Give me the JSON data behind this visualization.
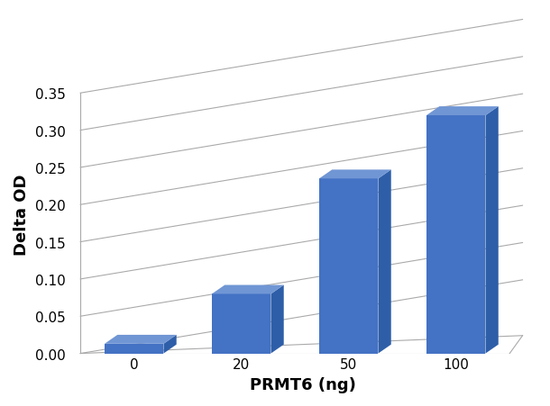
{
  "categories": [
    "0",
    "20",
    "50",
    "100"
  ],
  "x_values": [
    0,
    1,
    2,
    3
  ],
  "values": [
    0.013,
    0.08,
    0.235,
    0.32
  ],
  "bar_color": "#4472C4",
  "bar_top_color": "#7096D4",
  "bar_side_color": "#2E5EA8",
  "xlabel": "PRMT6 (ng)",
  "ylabel": "Delta OD",
  "ylim": [
    0,
    0.375
  ],
  "yticks": [
    0,
    0.05,
    0.1,
    0.15,
    0.2,
    0.25,
    0.3,
    0.35
  ],
  "grid_color": "#AAAAAA",
  "background_color": "#FFFFFF",
  "xlabel_fontsize": 13,
  "ylabel_fontsize": 13,
  "tick_fontsize": 11
}
